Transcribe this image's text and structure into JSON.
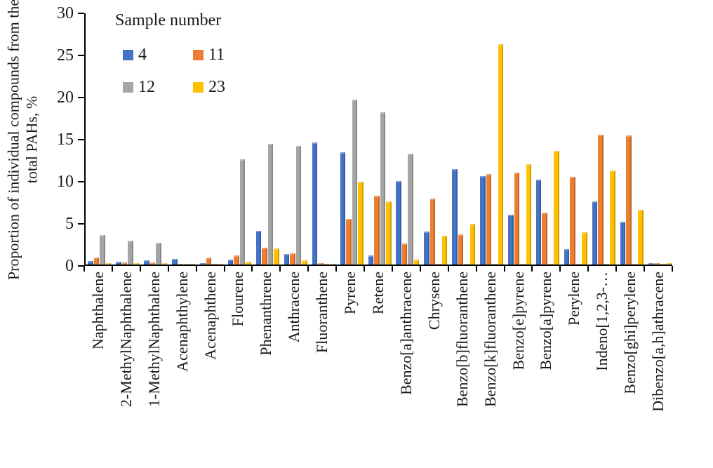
{
  "chart_data": {
    "type": "bar",
    "title": "",
    "legend_title": "Sample number",
    "legend_position": "top-left-inside",
    "grid": false,
    "ylabel": "Proportion of individual compounds from the total PAHs, %",
    "ylabel_lines": [
      "Proportion of individual compounds from the",
      "total PAHs, %"
    ],
    "ylim": [
      0,
      30
    ],
    "yticks": [
      0,
      5,
      10,
      15,
      20,
      25,
      30
    ],
    "categories": [
      "Naphthalene",
      "2-MethylNaphthalene",
      "1-MethylNaphthalene",
      "Acenaphthylene",
      "Acenaphthene",
      "Flourene",
      "Phenanthrene",
      "Anthracene",
      "Fluoranthene",
      "Pyrene",
      "Retene",
      "Benzo[a]anthracene",
      "Chrysene",
      "Benzo[b]fluoranthene",
      "Benzo[k]fluoranthene",
      "Benzo[e]pyrene",
      "Benzo[a]pyrene",
      "Perylene",
      "Indeno[1,2,3-…",
      "Benzo[ghi]perylene",
      "Dibenzo[a,h]athracene"
    ],
    "series": [
      {
        "name": "4",
        "color": "#4472C4",
        "values": [
          0.4,
          0.3,
          0.5,
          0.65,
          0.2,
          0.6,
          4.0,
          1.25,
          14.5,
          13.3,
          1.1,
          9.9,
          3.9,
          11.3,
          10.5,
          5.9,
          10.1,
          1.8,
          7.5,
          5.1,
          0.15
        ]
      },
      {
        "name": "11",
        "color": "#ED7D31",
        "values": [
          0.8,
          0.25,
          0.25,
          0.1,
          0.8,
          1.1,
          2.0,
          1.3,
          0.15,
          5.4,
          8.2,
          2.5,
          7.8,
          3.6,
          10.75,
          10.9,
          6.2,
          10.4,
          15.4,
          15.3,
          0.2
        ]
      },
      {
        "name": "12",
        "color": "#A5A5A5",
        "values": [
          3.5,
          2.8,
          2.6,
          0.1,
          0.1,
          12.5,
          14.3,
          14.1,
          0.1,
          19.6,
          18.1,
          13.2,
          0.1,
          0.1,
          0.1,
          0.1,
          0.1,
          0.1,
          0.1,
          0.1,
          0.1
        ]
      },
      {
        "name": "23",
        "color": "#FFC000",
        "values": [
          0.2,
          0.15,
          0.15,
          0.05,
          0.1,
          0.3,
          1.9,
          0.5,
          0.1,
          9.8,
          7.5,
          0.6,
          3.4,
          4.8,
          26.2,
          11.9,
          13.5,
          3.8,
          11.2,
          6.5,
          0.15
        ]
      }
    ]
  }
}
